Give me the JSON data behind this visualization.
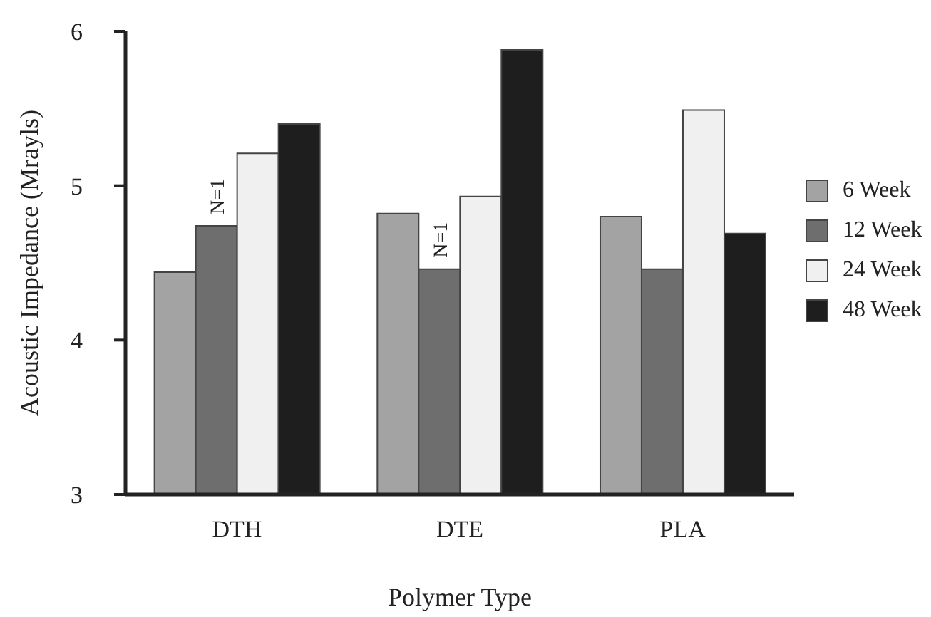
{
  "chart_data": {
    "type": "bar",
    "xlabel": "Polymer Type",
    "ylabel": "Acoustic Impedance (Mrayls)",
    "categories": [
      "DTH",
      "DTE",
      "PLA"
    ],
    "series": [
      {
        "name": "6 Week",
        "color": "#a3a3a3",
        "values": [
          4.44,
          4.82,
          4.8
        ]
      },
      {
        "name": "12 Week",
        "color": "#6e6e6e",
        "values": [
          4.74,
          4.46,
          4.46
        ]
      },
      {
        "name": "24 Week",
        "color": "#f0f0f0",
        "values": [
          5.21,
          4.93,
          5.49
        ]
      },
      {
        "name": "48 Week",
        "color": "#1e1e1e",
        "values": [
          5.4,
          5.88,
          4.69
        ]
      }
    ],
    "ylim": [
      3,
      6
    ],
    "yticks": [
      3,
      4,
      5,
      6
    ],
    "grid": false,
    "legend": "right",
    "annotations": [
      {
        "text": "N=1",
        "x": "DTH",
        "y": 4.74
      },
      {
        "text": "N=1",
        "x": "DTE",
        "y": 4.46
      }
    ]
  }
}
